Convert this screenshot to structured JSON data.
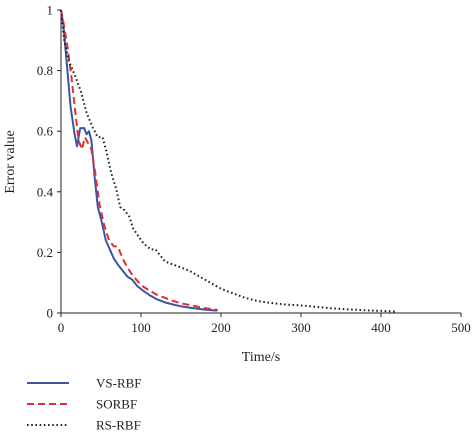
{
  "chart_data": {
    "type": "line",
    "title": "",
    "xlabel": "Time/s",
    "ylabel": "Error value",
    "xlim": [
      0,
      500
    ],
    "ylim": [
      0,
      1
    ],
    "xticks": [
      0,
      100,
      200,
      300,
      400,
      500
    ],
    "xtick_labels": [
      "0",
      "100",
      "200",
      "300",
      "400",
      "500"
    ],
    "yticks": [
      0,
      0.2,
      0.4,
      0.6,
      0.8,
      1
    ],
    "ytick_labels": [
      "0",
      "0.2",
      "0.4",
      "0.6",
      "0.8",
      "1"
    ],
    "grid": false,
    "legend_position": "bottom-left, below plot",
    "series": [
      {
        "name": "VS-RBF",
        "color": "#3a55a4",
        "style": "solid",
        "points": [
          [
            0,
            1.0
          ],
          [
            3,
            0.95
          ],
          [
            7,
            0.83
          ],
          [
            12,
            0.68
          ],
          [
            17,
            0.59
          ],
          [
            20,
            0.55
          ],
          [
            24,
            0.61
          ],
          [
            29,
            0.61
          ],
          [
            32,
            0.59
          ],
          [
            35,
            0.6
          ],
          [
            38,
            0.57
          ],
          [
            42,
            0.45
          ],
          [
            46,
            0.35
          ],
          [
            51,
            0.3
          ],
          [
            56,
            0.24
          ],
          [
            61,
            0.21
          ],
          [
            66,
            0.18
          ],
          [
            71,
            0.16
          ],
          [
            77,
            0.14
          ],
          [
            83,
            0.12
          ],
          [
            89,
            0.11
          ],
          [
            95,
            0.09
          ],
          [
            102,
            0.075
          ],
          [
            110,
            0.06
          ],
          [
            120,
            0.045
          ],
          [
            130,
            0.035
          ],
          [
            140,
            0.028
          ],
          [
            150,
            0.022
          ],
          [
            165,
            0.016
          ],
          [
            180,
            0.011
          ],
          [
            195,
            0.008
          ]
        ]
      },
      {
        "name": "SORBF",
        "color": "#e23030",
        "style": "dashed",
        "points": [
          [
            0,
            1.0
          ],
          [
            3,
            0.96
          ],
          [
            8,
            0.88
          ],
          [
            13,
            0.78
          ],
          [
            18,
            0.66
          ],
          [
            22,
            0.57
          ],
          [
            26,
            0.54
          ],
          [
            30,
            0.58
          ],
          [
            34,
            0.56
          ],
          [
            38,
            0.54
          ],
          [
            43,
            0.46
          ],
          [
            48,
            0.36
          ],
          [
            54,
            0.29
          ],
          [
            60,
            0.24
          ],
          [
            66,
            0.22
          ],
          [
            71,
            0.22
          ],
          [
            77,
            0.18
          ],
          [
            83,
            0.15
          ],
          [
            88,
            0.13
          ],
          [
            94,
            0.11
          ],
          [
            101,
            0.09
          ],
          [
            110,
            0.075
          ],
          [
            120,
            0.06
          ],
          [
            130,
            0.05
          ],
          [
            140,
            0.04
          ],
          [
            150,
            0.032
          ],
          [
            165,
            0.024
          ],
          [
            180,
            0.016
          ],
          [
            196,
            0.01
          ]
        ]
      },
      {
        "name": "RS-RBF",
        "color": "#222222",
        "style": "dotted",
        "points": [
          [
            0,
            1.0
          ],
          [
            4,
            0.9
          ],
          [
            10,
            0.83
          ],
          [
            18,
            0.78
          ],
          [
            25,
            0.73
          ],
          [
            32,
            0.66
          ],
          [
            40,
            0.61
          ],
          [
            46,
            0.58
          ],
          [
            52,
            0.58
          ],
          [
            57,
            0.53
          ],
          [
            63,
            0.46
          ],
          [
            69,
            0.41
          ],
          [
            74,
            0.35
          ],
          [
            79,
            0.34
          ],
          [
            85,
            0.32
          ],
          [
            90,
            0.28
          ],
          [
            95,
            0.26
          ],
          [
            103,
            0.23
          ],
          [
            112,
            0.21
          ],
          [
            118,
            0.21
          ],
          [
            124,
            0.19
          ],
          [
            130,
            0.17
          ],
          [
            140,
            0.16
          ],
          [
            150,
            0.15
          ],
          [
            160,
            0.14
          ],
          [
            170,
            0.125
          ],
          [
            180,
            0.11
          ],
          [
            190,
            0.095
          ],
          [
            200,
            0.08
          ],
          [
            215,
            0.065
          ],
          [
            230,
            0.05
          ],
          [
            245,
            0.04
          ],
          [
            260,
            0.034
          ],
          [
            280,
            0.028
          ],
          [
            300,
            0.025
          ],
          [
            320,
            0.02
          ],
          [
            340,
            0.015
          ],
          [
            360,
            0.012
          ],
          [
            380,
            0.009
          ],
          [
            400,
            0.007
          ],
          [
            418,
            0.005
          ]
        ]
      }
    ]
  }
}
